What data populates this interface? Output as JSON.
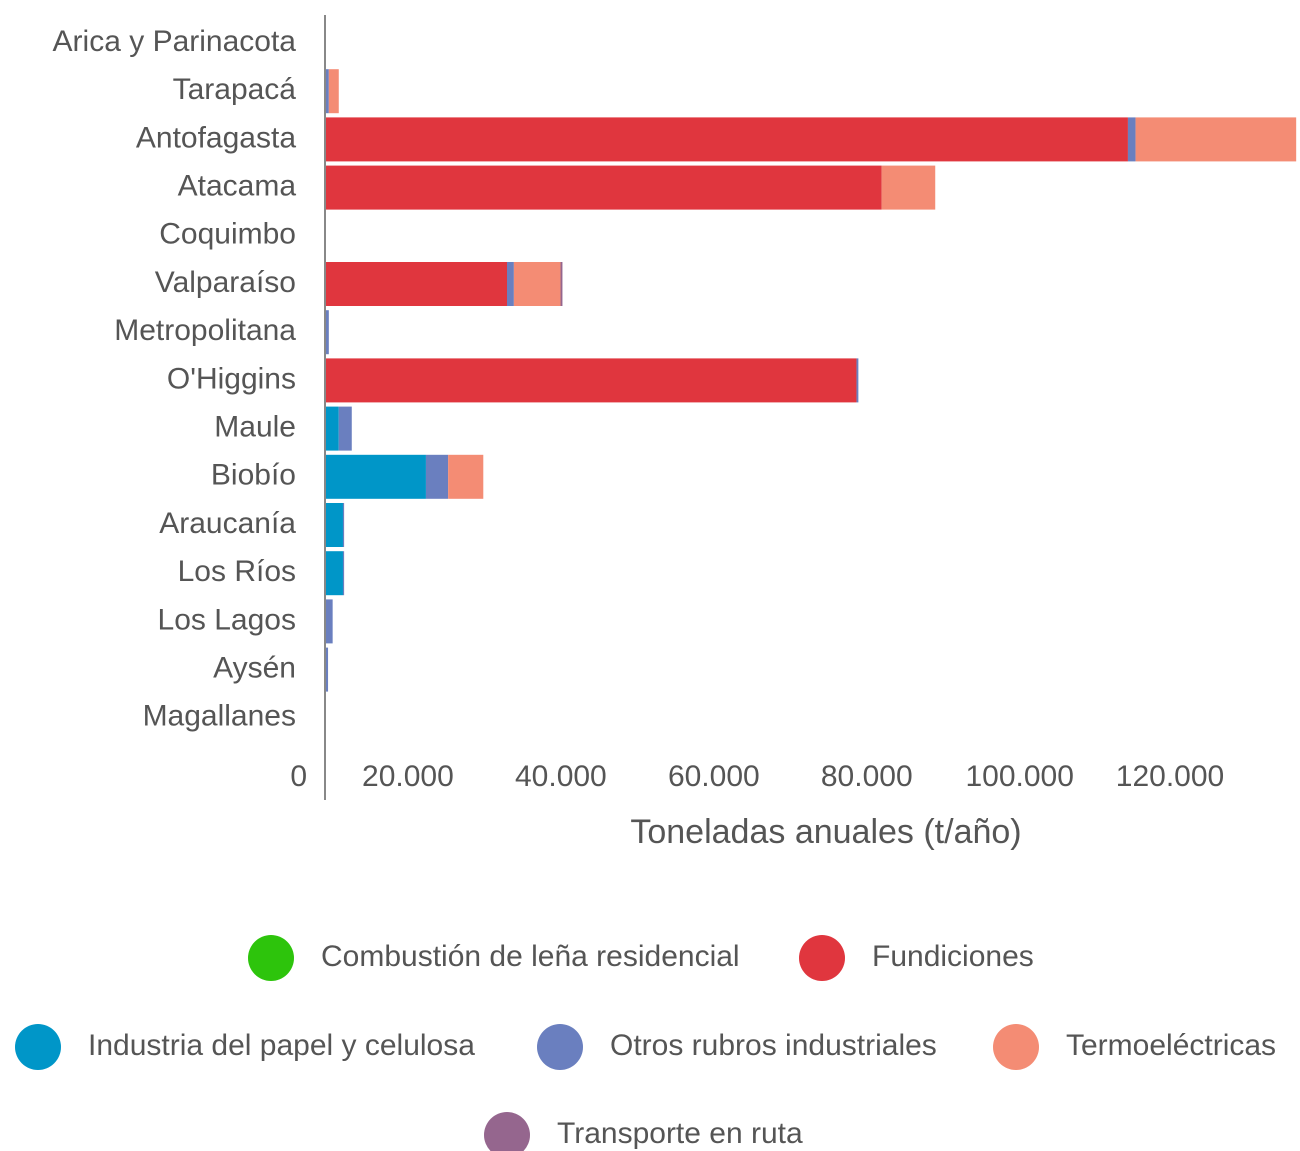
{
  "chart_data": {
    "type": "bar",
    "orientation": "horizontal",
    "stacked": true,
    "x_label": "Toneladas anuales (t/año)",
    "categories": [
      "Arica y Parinacota",
      "Tarapacá",
      "Antofagasta",
      "Atacama",
      "Coquimbo",
      "Valparaíso",
      "Metropolitana",
      "O'Higgins",
      "Maule",
      "Biobío",
      "Araucanía",
      "Los Ríos",
      "Los Lagos",
      "Aysén",
      "Magallanes"
    ],
    "series": [
      {
        "name": "Combustión de leña residencial",
        "color": "#2dc40c",
        "values": [
          0,
          0,
          0,
          0,
          0,
          0,
          0,
          0,
          0,
          0,
          0,
          0,
          0,
          0,
          0
        ]
      },
      {
        "name": "Fundiciones",
        "color": "#e0363e",
        "values": [
          0,
          0,
          105000,
          72800,
          0,
          23800,
          0,
          69500,
          0,
          0,
          0,
          0,
          0,
          0,
          0
        ]
      },
      {
        "name": "Industria del papel y celulosa",
        "color": "#0096c8",
        "values": [
          0,
          0,
          0,
          0,
          0,
          0,
          0,
          0,
          1800,
          13200,
          2350,
          2350,
          0,
          0,
          0
        ]
      },
      {
        "name": "Otros rubros industriales",
        "color": "#6a7fbf",
        "values": [
          0,
          500,
          1000,
          0,
          0,
          900,
          500,
          250,
          1700,
          2900,
          150,
          150,
          1000,
          400,
          0
        ]
      },
      {
        "name": "Termoeléctricas",
        "color": "#f48c74",
        "values": [
          0,
          1300,
          21000,
          7000,
          0,
          6100,
          0,
          0,
          0,
          4600,
          0,
          0,
          0,
          0,
          0
        ]
      },
      {
        "name": "Transporte en ruta",
        "color": "#95668e",
        "values": [
          0,
          0,
          0,
          0,
          0,
          250,
          0,
          0,
          0,
          0,
          0,
          0,
          0,
          0,
          0
        ]
      }
    ],
    "xlim": [
      0,
      127500
    ],
    "xticks": [
      0,
      {
        "value": 20000,
        "label": "20.000"
      },
      {
        "value": 40000,
        "label": "40.000"
      },
      {
        "value": 60000,
        "label": "60.000"
      },
      {
        "value": 80000,
        "label": "80.000"
      },
      {
        "value": 100000,
        "label": "100.000"
      },
      {
        "value": 120000,
        "label": "120.000"
      }
    ],
    "grid": false,
    "legend": "bottom"
  }
}
